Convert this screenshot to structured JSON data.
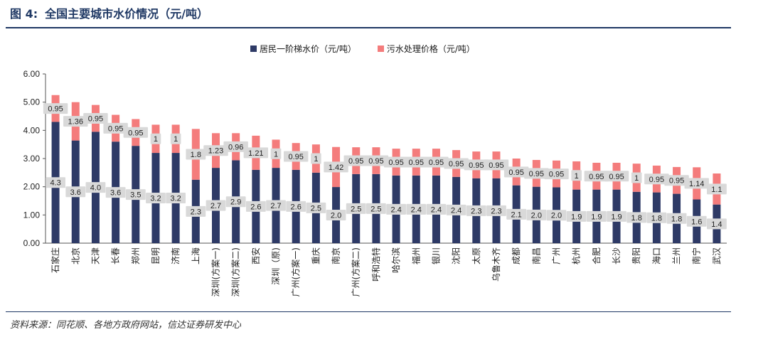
{
  "figure": {
    "number": "图 4:",
    "title": "全国主要城市水价情况（元/吨）",
    "source": "资料来源：同花顺、各地方政府网站，信达证券研发中心"
  },
  "colors": {
    "heading": "#1f3864",
    "supply": "#2e3a66",
    "sewage": "#f47c7c",
    "label_box": "#d9d9d9"
  },
  "chart_data": {
    "type": "bar",
    "stacked": true,
    "legend_position": "top",
    "ylim": [
      0,
      6
    ],
    "yticks": [
      "0.00",
      "1.00",
      "2.00",
      "3.00",
      "4.00",
      "5.00",
      "6.00"
    ],
    "grid": false,
    "categories": [
      "石家庄",
      "北京",
      "天津",
      "长春",
      "郑州",
      "昆明",
      "济南",
      "上海",
      "深圳(方案一)",
      "深圳(方案二)",
      "西安",
      "深圳（原)",
      "广州(方案一)",
      "重庆",
      "南京",
      "广州(方案二)",
      "呼和浩特",
      "哈尔滨",
      "福州",
      "银川",
      "沈阳",
      "太原",
      "乌鲁木齐",
      "成都",
      "南昌",
      "广州",
      "杭州",
      "合肥",
      "长沙",
      "贵阳",
      "海口",
      "兰州",
      "南宁",
      "武汉"
    ],
    "series": [
      {
        "name": "居民一阶梯水价（元/吨）",
        "values": [
          4.3,
          3.64,
          3.95,
          3.6,
          3.45,
          3.2,
          3.2,
          2.25,
          2.67,
          2.94,
          2.6,
          2.67,
          2.6,
          2.5,
          1.99,
          2.45,
          2.45,
          2.4,
          2.4,
          2.4,
          2.35,
          2.3,
          2.3,
          2.05,
          2.0,
          1.98,
          1.9,
          1.9,
          1.9,
          1.82,
          1.8,
          1.75,
          1.55,
          1.37
        ],
        "labels": [
          "4.3",
          "3.6",
          "4.0",
          "3.6",
          "3.5",
          "3.2",
          "3.2",
          "2.3",
          "2.7",
          "2.9",
          "2.6",
          "2.7",
          "2.6",
          "2.5",
          "2.0",
          "2.5",
          "2.5",
          "2.4",
          "2.4",
          "2.4",
          "2.4",
          "2.3",
          "2.3",
          "2.1",
          "2.0",
          "2.0",
          "1.9",
          "1.9",
          "1.9",
          "1.8",
          "1.8",
          "1.8",
          "1.6",
          "1.4"
        ]
      },
      {
        "name": "污水处理价格（元/吨）",
        "values": [
          0.95,
          1.36,
          0.95,
          0.95,
          0.95,
          1,
          1,
          1.8,
          1.23,
          0.96,
          1.21,
          1,
          0.95,
          1,
          1.42,
          0.95,
          0.95,
          0.95,
          0.95,
          0.95,
          0.95,
          0.95,
          0.95,
          0.95,
          0.95,
          0.95,
          1,
          0.95,
          0.95,
          1,
          0.95,
          0.95,
          1.14,
          1.1
        ],
        "labels": [
          "0.95",
          "1.36",
          "0.95",
          "0.95",
          "0.95",
          "1",
          "1",
          "1.8",
          "1.23",
          "0.96",
          "1.21",
          "1",
          "0.95",
          "1",
          "1.42",
          "0.95",
          "0.95",
          "0.95",
          "0.95",
          "0.95",
          "0.95",
          "0.95",
          "0.95",
          "0.95",
          "0.95",
          "0.95",
          "1",
          "0.95",
          "0.95",
          "1",
          "0.95",
          "0.95",
          "1.14",
          "1.1"
        ]
      }
    ]
  }
}
